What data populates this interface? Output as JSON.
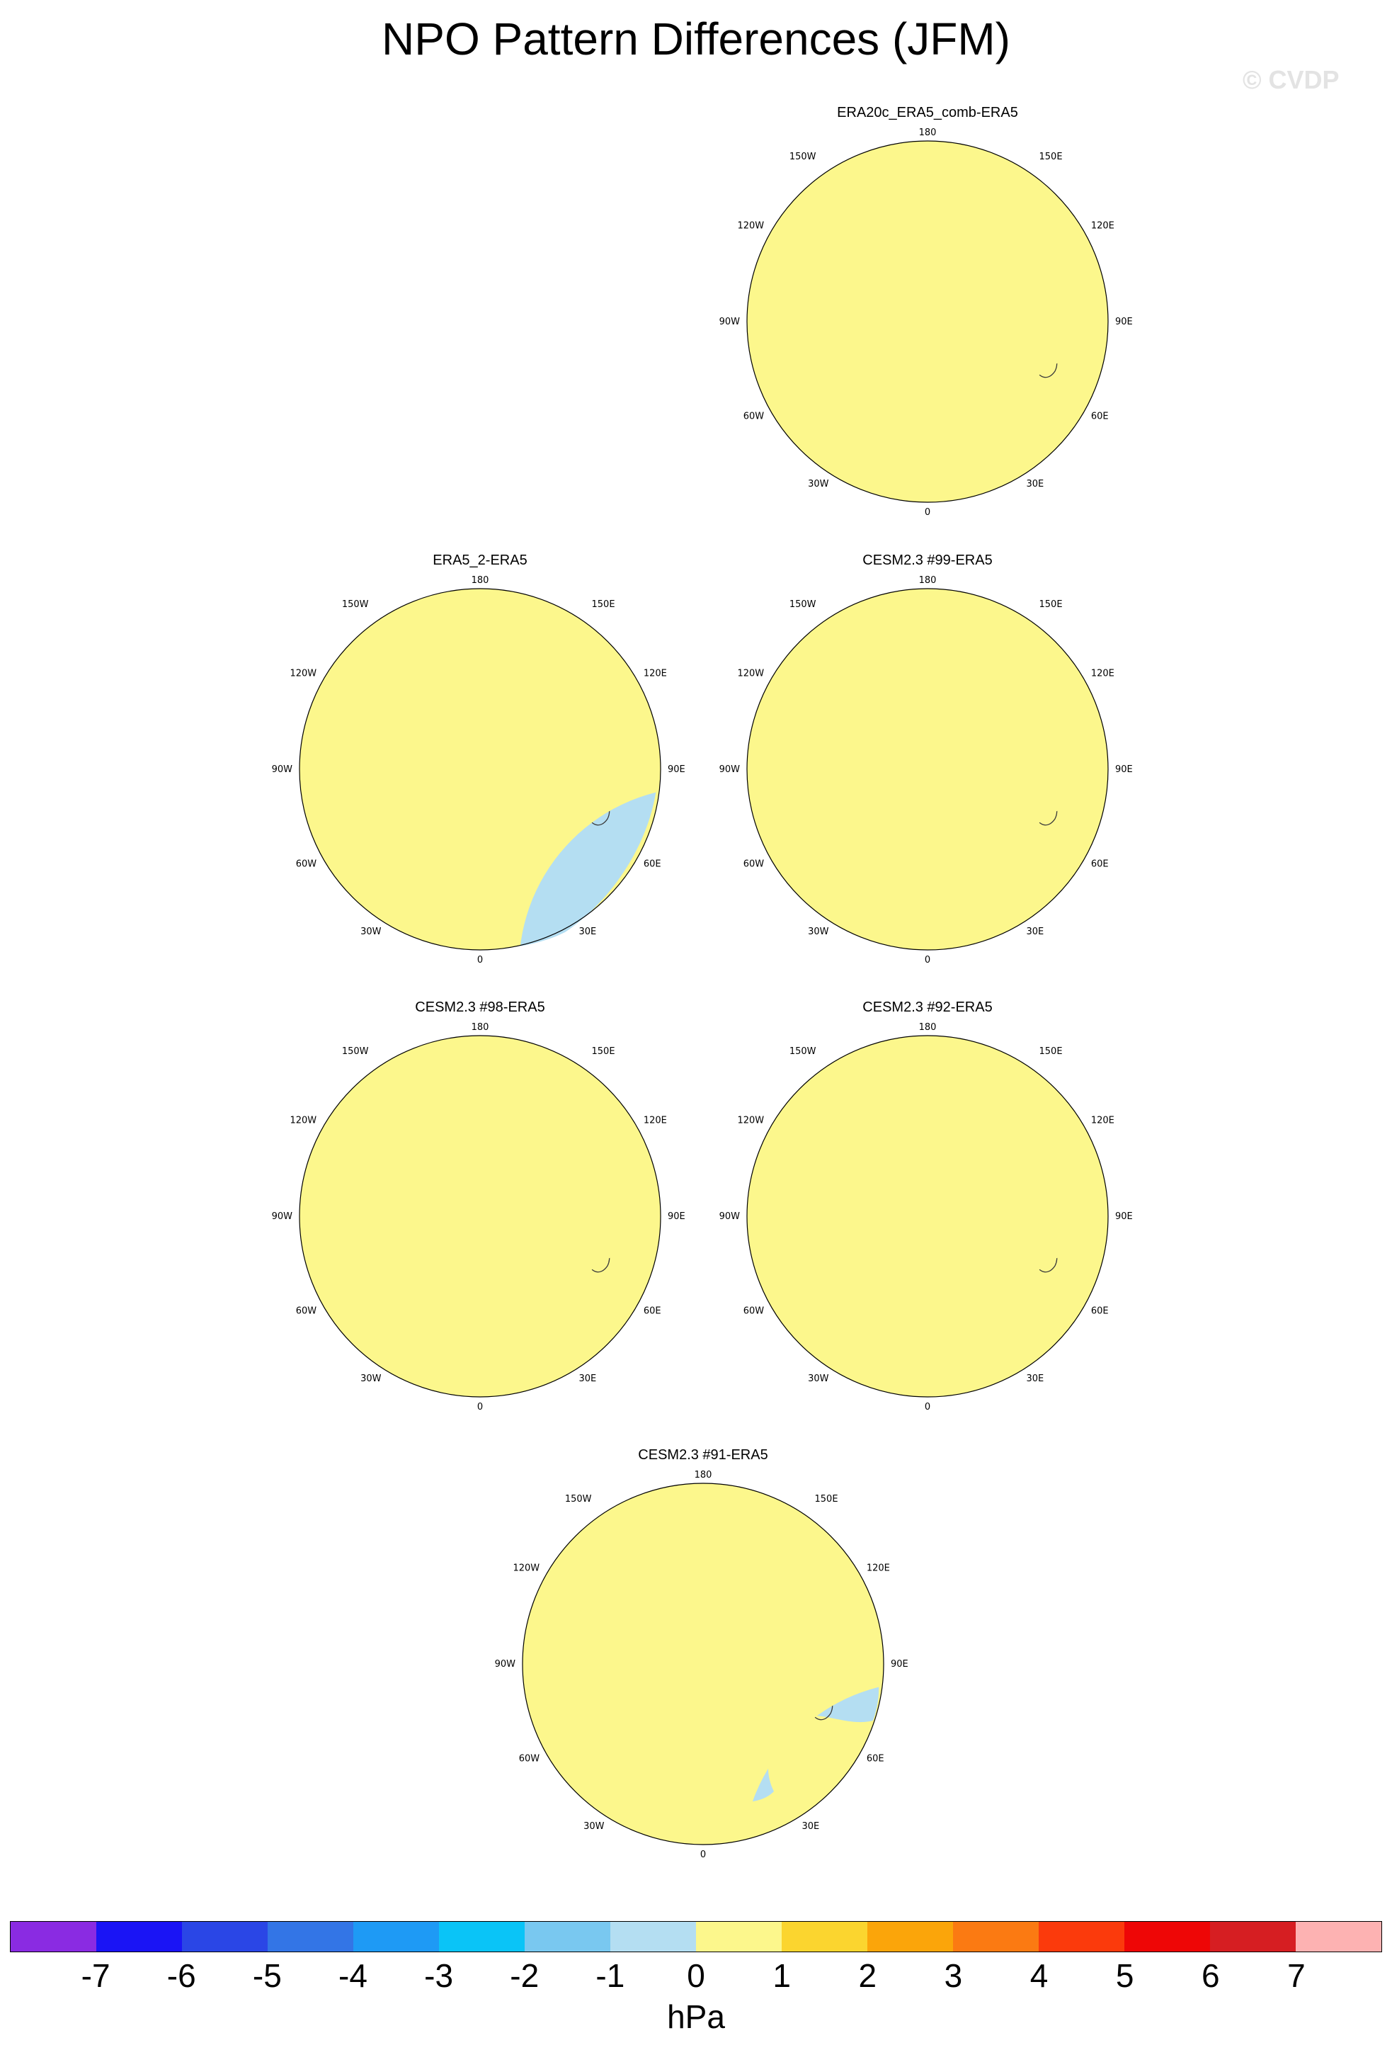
{
  "figure": {
    "title": "NPO Pattern Differences (JFM)",
    "watermark": "© CVDP",
    "units": "hPa"
  },
  "map_labels": {
    "top": "180",
    "bottom": "0",
    "left": "90W",
    "right": "90E",
    "upper_left_outer": "120W",
    "upper_left_inner": "150W",
    "upper_right_inner": "150E",
    "upper_right_outer": "120E",
    "lower_left_outer": "60W",
    "lower_left_inner": "30W",
    "lower_right_inner": "30E",
    "lower_right_outer": "60E"
  },
  "panels": [
    {
      "id": "p1",
      "title": "ERA20c_ERA5_comb-ERA5"
    },
    {
      "id": "p2",
      "title": "ERA5_2-ERA5"
    },
    {
      "id": "p3",
      "title": "CESM2.3 #99-ERA5"
    },
    {
      "id": "p4",
      "title": "CESM2.3 #98-ERA5"
    },
    {
      "id": "p5",
      "title": "CESM2.3 #92-ERA5"
    },
    {
      "id": "p6",
      "title": "CESM2.3 #91-ERA5"
    }
  ],
  "colorbar": {
    "labels": [
      "-7",
      "-6",
      "-5",
      "-4",
      "-3",
      "-2",
      "-1",
      "0",
      "1",
      "2",
      "3",
      "4",
      "5",
      "6",
      "7"
    ],
    "colors": [
      "#8a2be2",
      "#1a14f5",
      "#2a46e6",
      "#3375e6",
      "#1e9af5",
      "#0ac4f7",
      "#79c8f0",
      "#b4def2",
      "#fcf78c",
      "#fbd52f",
      "#fba50a",
      "#fb7a12",
      "#fb3a0c",
      "#ee0606",
      "#d61e22",
      "#fdb2b2"
    ]
  },
  "palette": {
    "ocean_pos": "#fcf78c",
    "l1": "#b4def2",
    "l2": "#79c8f0",
    "l3": "#1e9af5",
    "l4": "#3375e6",
    "l5": "#2a46e6",
    "p1": "#fbd52f",
    "p2": "#fba50a",
    "coast": "#3a3a3a"
  }
}
